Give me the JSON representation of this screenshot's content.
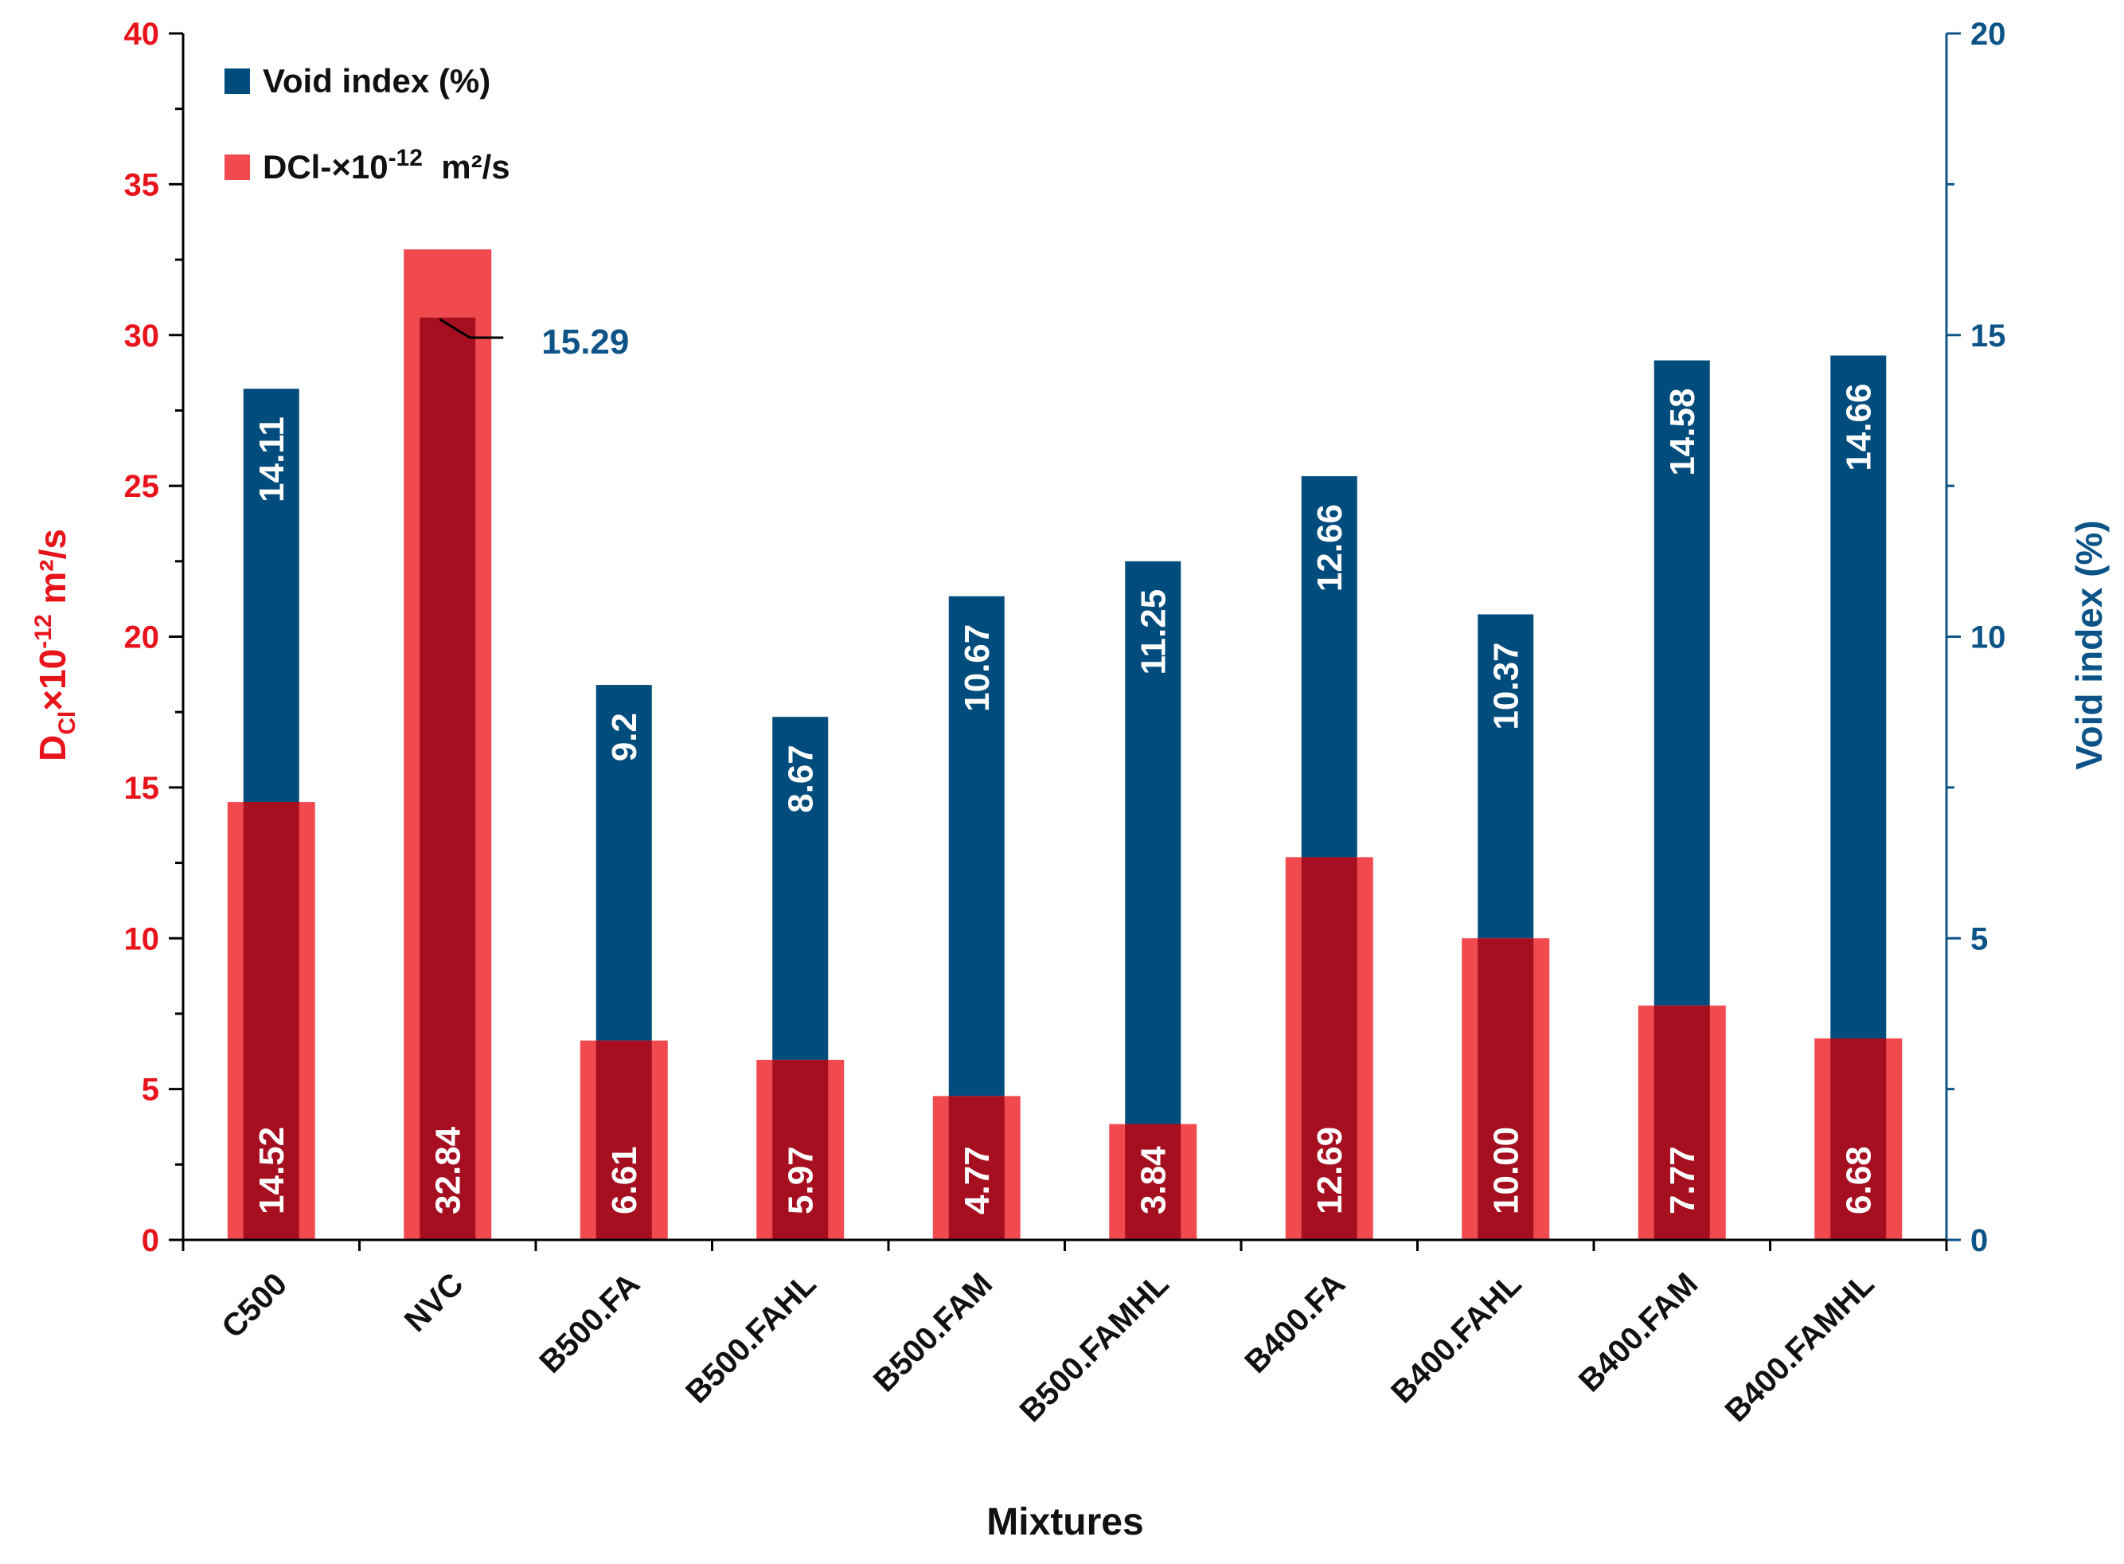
{
  "chart_data": {
    "type": "bar",
    "title": "",
    "xlabel": "Mixtures",
    "categories": [
      "C500",
      "NVC",
      "B500.FA",
      "B500.FAHL",
      "B500.FAM",
      "B500.FAMHL",
      "B400.FA",
      "B400.FAHL",
      "B400.FAM",
      "B400.FAMHL"
    ],
    "y_left": {
      "label_main": "D",
      "label_sub": "Cl",
      "label_rest": "×10",
      "label_exp": "-12",
      "label_unit": " m²/s",
      "ylim": [
        0,
        40
      ],
      "ticks": [
        "0",
        "5",
        "10",
        "15",
        "20",
        "25",
        "30",
        "35",
        "40"
      ],
      "color": "#e8141c"
    },
    "y_right": {
      "label": "Void index (%)",
      "ylim": [
        0,
        20
      ],
      "ticks": [
        "0",
        "5",
        "10",
        "15",
        "20"
      ],
      "color": "#0c5487"
    },
    "series": [
      {
        "name": "Void index (%)",
        "axis": "right",
        "color": "#004c7c",
        "values": [
          14.11,
          15.29,
          9.2,
          8.67,
          10.67,
          11.25,
          12.66,
          10.37,
          14.58,
          14.66
        ],
        "labels": [
          "14.11",
          "15.29",
          "9.2",
          "8.67",
          "10.67",
          "11.25",
          "12.66",
          "10.37",
          "14.58",
          "14.66"
        ]
      },
      {
        "name": "DCl-×10-12 m²/s",
        "axis": "left",
        "color": "#f04a4e",
        "overlap_color": "#a50f20",
        "values": [
          14.52,
          32.84,
          6.61,
          5.97,
          4.77,
          3.84,
          12.69,
          10.0,
          7.77,
          6.68
        ],
        "labels": [
          "14.52",
          "32.84",
          "6.61",
          "5.97",
          "4.77",
          "3.84",
          "12.69",
          "10.00",
          "7.77",
          "6.68"
        ]
      }
    ],
    "legend": {
      "position": "top-left",
      "entry_void": "Void index (%)",
      "entry_dcl_main": "DCl-×10",
      "entry_dcl_exp": "-12",
      "entry_dcl_unit": "  m²/s"
    },
    "callout": {
      "category": "NVC",
      "text": "15.29"
    }
  }
}
